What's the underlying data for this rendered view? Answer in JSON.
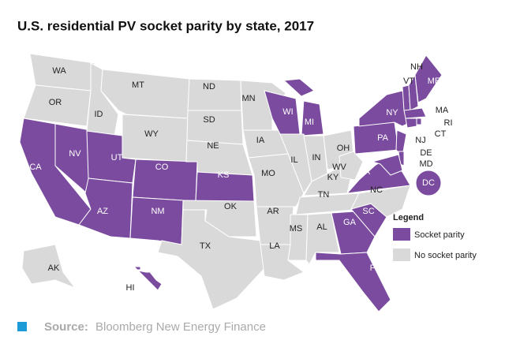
{
  "title": "U.S. residential PV socket parity by state, 2017",
  "states": [
    {
      "abbr": "WA",
      "parity": false
    },
    {
      "abbr": "OR",
      "parity": false
    },
    {
      "abbr": "CA",
      "parity": true
    },
    {
      "abbr": "NV",
      "parity": true
    },
    {
      "abbr": "ID",
      "parity": false
    },
    {
      "abbr": "MT",
      "parity": false
    },
    {
      "abbr": "WY",
      "parity": false
    },
    {
      "abbr": "UT",
      "parity": true
    },
    {
      "abbr": "AZ",
      "parity": true
    },
    {
      "abbr": "CO",
      "parity": true
    },
    {
      "abbr": "NM",
      "parity": true
    },
    {
      "abbr": "ND",
      "parity": false
    },
    {
      "abbr": "SD",
      "parity": false
    },
    {
      "abbr": "NE",
      "parity": false
    },
    {
      "abbr": "KS",
      "parity": true
    },
    {
      "abbr": "OK",
      "parity": false
    },
    {
      "abbr": "TX",
      "parity": false
    },
    {
      "abbr": "MN",
      "parity": false
    },
    {
      "abbr": "IA",
      "parity": false
    },
    {
      "abbr": "MO",
      "parity": false
    },
    {
      "abbr": "AR",
      "parity": false
    },
    {
      "abbr": "LA",
      "parity": false
    },
    {
      "abbr": "WI",
      "parity": true
    },
    {
      "abbr": "MI",
      "parity": true
    },
    {
      "abbr": "IL",
      "parity": false
    },
    {
      "abbr": "IN",
      "parity": false
    },
    {
      "abbr": "OH",
      "parity": false
    },
    {
      "abbr": "KY",
      "parity": false
    },
    {
      "abbr": "TN",
      "parity": false
    },
    {
      "abbr": "MS",
      "parity": false
    },
    {
      "abbr": "AL",
      "parity": false
    },
    {
      "abbr": "GA",
      "parity": true
    },
    {
      "abbr": "FL",
      "parity": true
    },
    {
      "abbr": "SC",
      "parity": true
    },
    {
      "abbr": "NC",
      "parity": false
    },
    {
      "abbr": "WV",
      "parity": false
    },
    {
      "abbr": "VA",
      "parity": true
    },
    {
      "abbr": "PA",
      "parity": true
    },
    {
      "abbr": "NY",
      "parity": true
    },
    {
      "abbr": "VT",
      "parity": true
    },
    {
      "abbr": "NH",
      "parity": true
    },
    {
      "abbr": "ME",
      "parity": true
    },
    {
      "abbr": "MA",
      "parity": true
    },
    {
      "abbr": "RI",
      "parity": true
    },
    {
      "abbr": "CT",
      "parity": true
    },
    {
      "abbr": "NJ",
      "parity": true
    },
    {
      "abbr": "DE",
      "parity": true
    },
    {
      "abbr": "MD",
      "parity": true
    },
    {
      "abbr": "DC",
      "parity": true
    },
    {
      "abbr": "AK",
      "parity": false
    },
    {
      "abbr": "HI",
      "parity": true
    }
  ],
  "legend": {
    "title": "Legend",
    "items": [
      "Socket parity",
      "No socket parity"
    ]
  },
  "source": {
    "label": "Source:",
    "text": "Bloomberg New Energy Finance"
  }
}
